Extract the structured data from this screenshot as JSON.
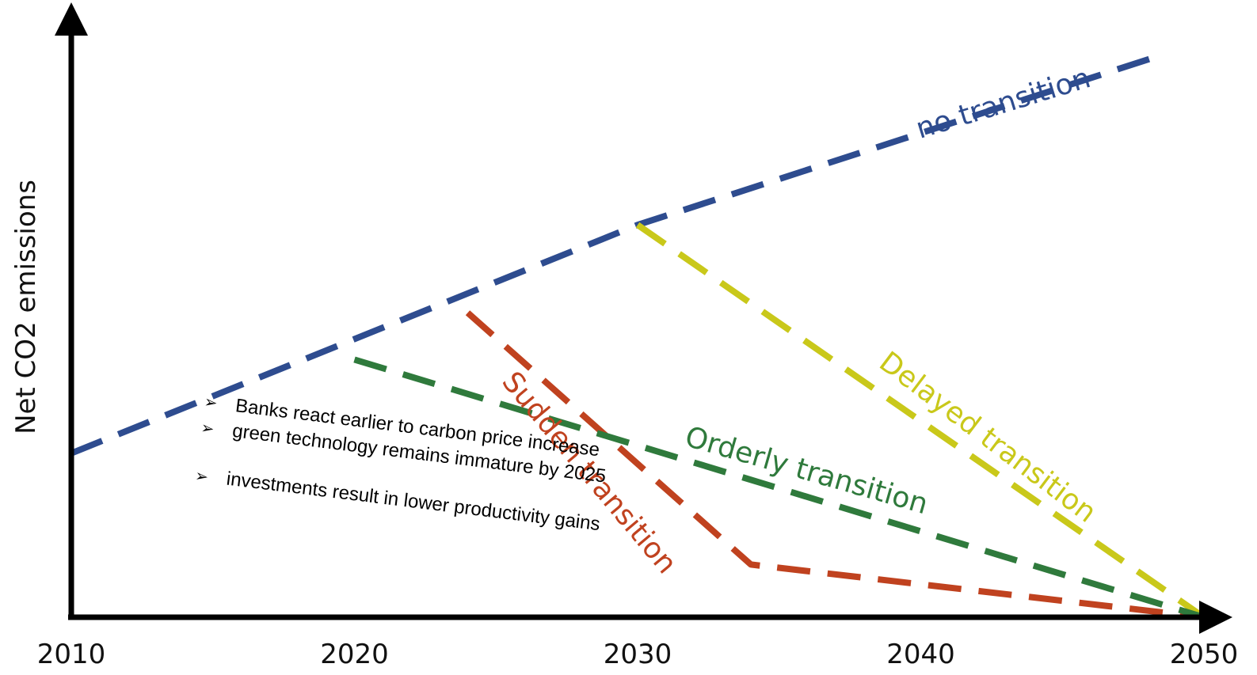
{
  "chart_data": {
    "type": "line",
    "title": "",
    "xlabel": "",
    "ylabel": "Net CO2 emissions",
    "xlim": [
      2010,
      2050
    ],
    "ylim": [
      0,
      100
    ],
    "x_ticks": [
      "2010",
      "2020",
      "2030",
      "2040",
      "2050"
    ],
    "grid": false,
    "legend": "inline labels",
    "series": [
      {
        "name": "no transition",
        "color": "#2e4c8f",
        "points": [
          [
            2010,
            28
          ],
          [
            2030,
            67
          ],
          [
            2048.5,
            96
          ]
        ]
      },
      {
        "name": "Delayed transition",
        "color": "#c9c81a",
        "points": [
          [
            2030,
            67
          ],
          [
            2050,
            0
          ]
        ]
      },
      {
        "name": "Sudden transition",
        "color": "#c0421f",
        "points": [
          [
            2024,
            52
          ],
          [
            2034,
            9
          ],
          [
            2050,
            0
          ]
        ]
      },
      {
        "name": "Orderly transition",
        "color": "#2f7a3c",
        "points": [
          [
            2020,
            44
          ],
          [
            2050,
            0
          ]
        ]
      }
    ]
  },
  "annotation": {
    "bullets": [
      "Banks react earlier to carbon price increase",
      "green technology remains immature by 2025",
      "investments result in lower productivity gains"
    ]
  }
}
